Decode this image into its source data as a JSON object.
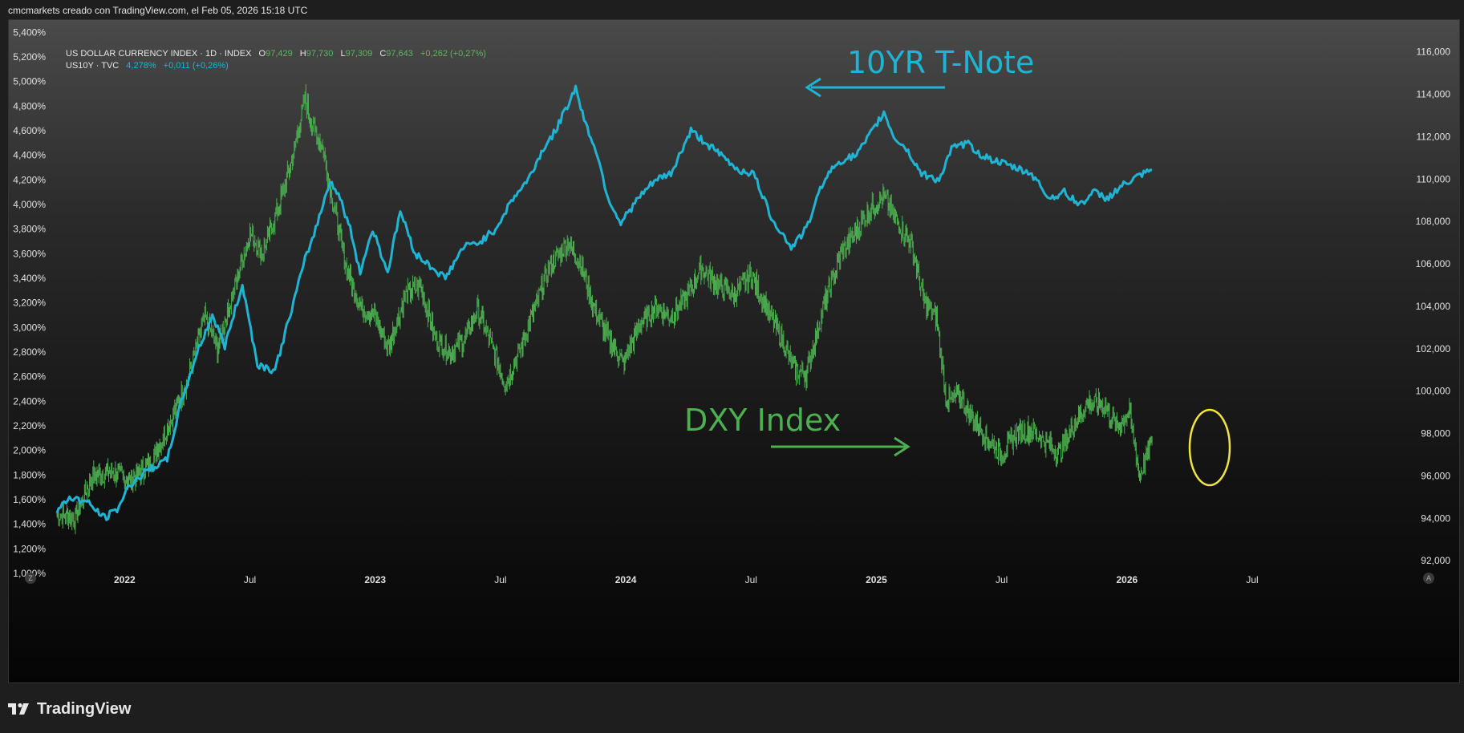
{
  "header": {
    "attribution": "cmcmarkets creado con TradingView.com, el Feb 05, 2026 15:18 UTC"
  },
  "legend": {
    "primary_name": "US DOLLAR CURRENCY INDEX · 1D · INDEX",
    "o_label": "O",
    "o_value": "97,429",
    "h_label": "H",
    "h_value": "97,730",
    "l_label": "L",
    "l_value": "97,309",
    "c_label": "C",
    "c_value": "97,643",
    "change": "+0,262 (+0,27%)",
    "secondary_name": "US10Y · TVC",
    "secondary_value": "4,278%",
    "secondary_change": "+0,011 (+0,26%)"
  },
  "footer": {
    "brand": "TradingView"
  },
  "corner": {
    "left_btn": "Z",
    "right_btn": "A"
  },
  "colors": {
    "dxy": "#4caf50",
    "us10y": "#1fb4d4",
    "highlight": "#f0e442",
    "axis_text": "#e0e0e0"
  },
  "chart_data": {
    "type": "line",
    "annotations": [
      {
        "text": "10YR T-Note",
        "series": "US10Y",
        "arrow": "left"
      },
      {
        "text": "DXY Index",
        "series": "DXY",
        "arrow": "right"
      }
    ],
    "highlight": {
      "shape": "ellipse",
      "date": "2026-02",
      "color": "yellow"
    },
    "x_ticks": [
      {
        "label": "2022",
        "t": 2022.0,
        "bold": true
      },
      {
        "label": "Jul",
        "t": 2022.5,
        "bold": false
      },
      {
        "label": "2023",
        "t": 2023.0,
        "bold": true
      },
      {
        "label": "Jul",
        "t": 2023.5,
        "bold": false
      },
      {
        "label": "2024",
        "t": 2024.0,
        "bold": true
      },
      {
        "label": "Jul",
        "t": 2024.5,
        "bold": false
      },
      {
        "label": "2025",
        "t": 2025.0,
        "bold": true
      },
      {
        "label": "Jul",
        "t": 2025.5,
        "bold": false
      },
      {
        "label": "2026",
        "t": 2026.0,
        "bold": true
      },
      {
        "label": "Jul",
        "t": 2026.5,
        "bold": false
      }
    ],
    "xlim": [
      2021.73,
      2026.98
    ],
    "left_axis": {
      "series": "US10Y",
      "ylim": [
        1.0,
        5.5
      ],
      "ticks": [
        "1,000%",
        "1,200%",
        "1,400%",
        "1,600%",
        "1,800%",
        "2,000%",
        "2,200%",
        "2,400%",
        "2,600%",
        "2,800%",
        "3,000%",
        "3,200%",
        "3,400%",
        "3,600%",
        "3,800%",
        "4,000%",
        "4,200%",
        "4,400%",
        "4,600%",
        "4,800%",
        "5,000%",
        "5,200%",
        "5,400%"
      ],
      "tick_values": [
        1.0,
        1.2,
        1.4,
        1.6,
        1.8,
        2.0,
        2.2,
        2.4,
        2.6,
        2.8,
        3.0,
        3.2,
        3.4,
        3.6,
        3.8,
        4.0,
        4.2,
        4.4,
        4.6,
        4.8,
        5.0,
        5.2,
        5.4
      ]
    },
    "right_axis": {
      "series": "DXY",
      "ylim": [
        91.4,
        117.5
      ],
      "ticks": [
        "92,000",
        "94,000",
        "96,000",
        "98,000",
        "100,000",
        "102,000",
        "104,000",
        "106,000",
        "108,000",
        "110,000",
        "112,000",
        "114,000",
        "116,000"
      ],
      "tick_values": [
        92,
        94,
        96,
        98,
        100,
        102,
        104,
        106,
        108,
        110,
        112,
        114,
        116
      ]
    },
    "series": [
      {
        "name": "US10Y",
        "axis": "left",
        "points": [
          [
            2021.73,
            1.5
          ],
          [
            2021.78,
            1.62
          ],
          [
            2021.85,
            1.58
          ],
          [
            2021.92,
            1.45
          ],
          [
            2021.97,
            1.52
          ],
          [
            2022.02,
            1.72
          ],
          [
            2022.1,
            1.85
          ],
          [
            2022.17,
            1.92
          ],
          [
            2022.22,
            2.35
          ],
          [
            2022.29,
            2.8
          ],
          [
            2022.35,
            3.1
          ],
          [
            2022.4,
            2.85
          ],
          [
            2022.47,
            3.35
          ],
          [
            2022.53,
            2.7
          ],
          [
            2022.6,
            2.65
          ],
          [
            2022.66,
            3.1
          ],
          [
            2022.72,
            3.55
          ],
          [
            2022.77,
            3.85
          ],
          [
            2022.82,
            4.2
          ],
          [
            2022.86,
            4.05
          ],
          [
            2022.9,
            3.8
          ],
          [
            2022.94,
            3.45
          ],
          [
            2022.99,
            3.8
          ],
          [
            2023.05,
            3.45
          ],
          [
            2023.1,
            3.95
          ],
          [
            2023.16,
            3.6
          ],
          [
            2023.22,
            3.5
          ],
          [
            2023.28,
            3.4
          ],
          [
            2023.35,
            3.65
          ],
          [
            2023.42,
            3.7
          ],
          [
            2023.48,
            3.8
          ],
          [
            2023.55,
            4.05
          ],
          [
            2023.61,
            4.2
          ],
          [
            2023.67,
            4.45
          ],
          [
            2023.72,
            4.6
          ],
          [
            2023.8,
            4.95
          ],
          [
            2023.84,
            4.65
          ],
          [
            2023.88,
            4.45
          ],
          [
            2023.93,
            4.05
          ],
          [
            2023.98,
            3.85
          ],
          [
            2024.05,
            4.05
          ],
          [
            2024.12,
            4.2
          ],
          [
            2024.18,
            4.25
          ],
          [
            2024.26,
            4.6
          ],
          [
            2024.32,
            4.5
          ],
          [
            2024.38,
            4.4
          ],
          [
            2024.45,
            4.28
          ],
          [
            2024.51,
            4.25
          ],
          [
            2024.58,
            3.9
          ],
          [
            2024.66,
            3.65
          ],
          [
            2024.72,
            3.8
          ],
          [
            2024.79,
            4.2
          ],
          [
            2024.85,
            4.35
          ],
          [
            2024.92,
            4.4
          ],
          [
            2024.97,
            4.55
          ],
          [
            2025.03,
            4.75
          ],
          [
            2025.07,
            4.55
          ],
          [
            2025.12,
            4.45
          ],
          [
            2025.18,
            4.25
          ],
          [
            2025.25,
            4.2
          ],
          [
            2025.3,
            4.45
          ],
          [
            2025.36,
            4.5
          ],
          [
            2025.42,
            4.4
          ],
          [
            2025.48,
            4.35
          ],
          [
            2025.55,
            4.3
          ],
          [
            2025.62,
            4.25
          ],
          [
            2025.69,
            4.05
          ],
          [
            2025.75,
            4.1
          ],
          [
            2025.81,
            4.0
          ],
          [
            2025.87,
            4.1
          ],
          [
            2025.92,
            4.05
          ],
          [
            2025.98,
            4.15
          ],
          [
            2026.04,
            4.22
          ],
          [
            2026.1,
            4.278
          ]
        ]
      },
      {
        "name": "DXY",
        "axis": "right",
        "points": [
          [
            2021.73,
            94.2
          ],
          [
            2021.8,
            94.0
          ],
          [
            2021.87,
            96.0
          ],
          [
            2021.95,
            96.2
          ],
          [
            2022.02,
            95.8
          ],
          [
            2022.1,
            96.5
          ],
          [
            2022.18,
            98.5
          ],
          [
            2022.25,
            100.5
          ],
          [
            2022.32,
            103.5
          ],
          [
            2022.37,
            102.0
          ],
          [
            2022.43,
            104.5
          ],
          [
            2022.5,
            107.5
          ],
          [
            2022.55,
            106.5
          ],
          [
            2022.61,
            108.5
          ],
          [
            2022.67,
            111.0
          ],
          [
            2022.72,
            113.8
          ],
          [
            2022.75,
            112.5
          ],
          [
            2022.79,
            111.5
          ],
          [
            2022.83,
            109.0
          ],
          [
            2022.88,
            106.0
          ],
          [
            2022.94,
            104.0
          ],
          [
            2023.0,
            103.5
          ],
          [
            2023.05,
            102.0
          ],
          [
            2023.12,
            104.5
          ],
          [
            2023.18,
            105.0
          ],
          [
            2023.24,
            102.5
          ],
          [
            2023.3,
            101.8
          ],
          [
            2023.36,
            102.5
          ],
          [
            2023.41,
            103.8
          ],
          [
            2023.47,
            102.0
          ],
          [
            2023.52,
            100.3
          ],
          [
            2023.58,
            102.0
          ],
          [
            2023.64,
            104.0
          ],
          [
            2023.7,
            106.0
          ],
          [
            2023.77,
            107.0
          ],
          [
            2023.82,
            106.0
          ],
          [
            2023.87,
            104.0
          ],
          [
            2023.93,
            102.5
          ],
          [
            2023.99,
            101.3
          ],
          [
            2024.05,
            103.0
          ],
          [
            2024.12,
            104.0
          ],
          [
            2024.18,
            103.5
          ],
          [
            2024.23,
            104.2
          ],
          [
            2024.3,
            105.8
          ],
          [
            2024.37,
            105.0
          ],
          [
            2024.43,
            104.5
          ],
          [
            2024.5,
            105.5
          ],
          [
            2024.56,
            104.0
          ],
          [
            2024.62,
            102.5
          ],
          [
            2024.67,
            101.0
          ],
          [
            2024.72,
            100.8
          ],
          [
            2024.79,
            104.0
          ],
          [
            2024.86,
            106.5
          ],
          [
            2024.92,
            107.5
          ],
          [
            2024.97,
            108.5
          ],
          [
            2025.03,
            109.2
          ],
          [
            2025.08,
            108.0
          ],
          [
            2025.14,
            107.0
          ],
          [
            2025.19,
            104.2
          ],
          [
            2025.24,
            103.5
          ],
          [
            2025.28,
            99.5
          ],
          [
            2025.33,
            99.8
          ],
          [
            2025.38,
            98.8
          ],
          [
            2025.44,
            97.8
          ],
          [
            2025.5,
            97.0
          ],
          [
            2025.56,
            98.0
          ],
          [
            2025.62,
            98.2
          ],
          [
            2025.68,
            97.5
          ],
          [
            2025.73,
            97.0
          ],
          [
            2025.79,
            98.5
          ],
          [
            2025.85,
            99.5
          ],
          [
            2025.91,
            99.3
          ],
          [
            2025.96,
            98.3
          ],
          [
            2026.01,
            99.0
          ],
          [
            2026.05,
            96.0
          ],
          [
            2026.1,
            97.643
          ]
        ]
      }
    ]
  }
}
